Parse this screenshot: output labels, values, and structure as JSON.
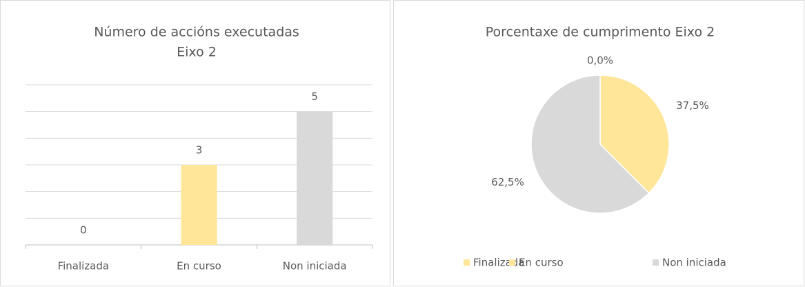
{
  "chart_data": [
    {
      "type": "bar",
      "title": "Número de accións executadas",
      "subtitle": "Eixo 2",
      "categories": [
        "Finalizada",
        "En curso",
        "Non iniciada"
      ],
      "values": [
        0,
        3,
        5
      ],
      "colors": [
        "#ffe699",
        "#ffe699",
        "#d9d9d9"
      ],
      "ylim": [
        0,
        6
      ],
      "yticks": [
        0,
        1,
        2,
        3,
        4,
        5,
        6
      ],
      "grid": true
    },
    {
      "type": "pie",
      "title": "Porcentaxe de cumprimento Eixo 2",
      "categories": [
        "Finalizada",
        "En curso",
        "Non iniciada"
      ],
      "values": [
        0,
        37.5,
        62.5
      ],
      "value_labels": [
        "0,0%",
        "37,5%",
        "62,5%"
      ],
      "colors": [
        "#ffe699",
        "#ffe699",
        "#d9d9d9"
      ],
      "legend": "bottom"
    }
  ]
}
